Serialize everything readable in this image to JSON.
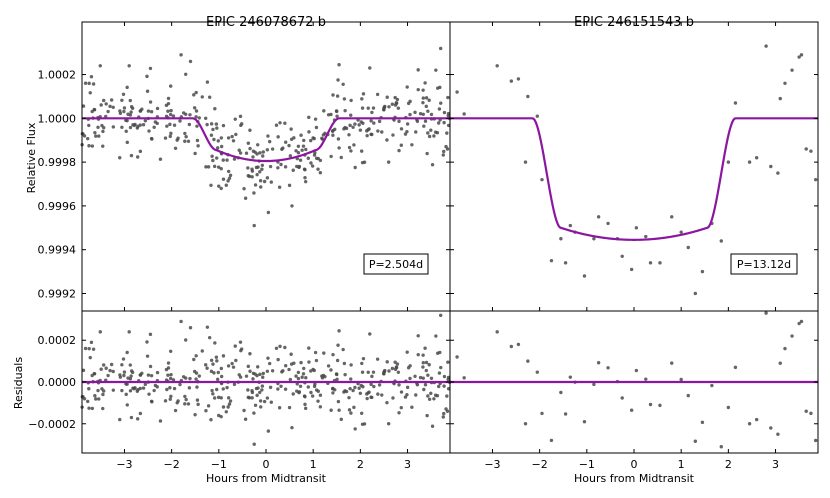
{
  "chart_data": {
    "type": "scatter",
    "xlabel": "Hours from Midtransit",
    "shared_xlim": [
      -3.9,
      3.9
    ],
    "xticks": [
      -3,
      -2,
      -1,
      0,
      1,
      2,
      3
    ],
    "xtick_labels": [
      "−3",
      "−2",
      "−1",
      "0",
      "1",
      "2",
      "3"
    ],
    "flux_ylabel": "Relative Flux",
    "flux_ylim": [
      0.99912,
      1.00044
    ],
    "flux_yticks": [
      0.9992,
      0.9994,
      0.9996,
      0.9998,
      1.0,
      1.0002
    ],
    "flux_ytick_labels": [
      "0.9992",
      "0.9994",
      "0.9996",
      "0.9998",
      "1.0000",
      "1.0002"
    ],
    "resid_ylabel": "Residuals",
    "resid_ylim": [
      -0.00034,
      0.00034
    ],
    "resid_yticks": [
      -0.0002,
      0.0,
      0.0002
    ],
    "resid_ytick_labels": [
      "−0.0002",
      "0.0000",
      "0.0002"
    ],
    "model_color": "#8b17a0",
    "point_color": "#4a4a4a",
    "panels": [
      {
        "title": "EPIC 246078672 b",
        "period_label": "P=2.504d",
        "model": {
          "baseline": 1.0,
          "t_contact1": 1.55,
          "t_contact2": 1.05,
          "depth_edge": 0.000145,
          "depth_center": 0.000195
        },
        "points": {
          "count": 420,
          "seed": 7,
          "scatter": 8.5e-05
        },
        "outliers": [
          {
            "x": -1.8,
            "y": 1.00029
          },
          {
            "x": -2.9,
            "y": 1.00024
          },
          {
            "x": -3.7,
            "y": 1.00019
          },
          {
            "x": -1.6,
            "y": 1.00026
          },
          {
            "x": -0.95,
            "y": 0.99968
          },
          {
            "x": -0.25,
            "y": 0.99951
          },
          {
            "x": 0.05,
            "y": 0.99957
          },
          {
            "x": 0.55,
            "y": 0.9996
          },
          {
            "x": 3.6,
            "y": 1.00022
          },
          {
            "x": 2.2,
            "y": 1.00023
          },
          {
            "x": 2.6,
            "y": 0.9998
          },
          {
            "x": -3.1,
            "y": 0.99982
          }
        ]
      },
      {
        "title": "EPIC 246151543 b",
        "period_label": "P=13.12d",
        "model": {
          "baseline": 1.0,
          "t_contact1": 2.15,
          "t_contact2": 1.55,
          "depth_edge": 0.0005,
          "depth_center": 0.000555
        },
        "points": {
          "count": 0,
          "seed": 3,
          "scatter": 0.0
        },
        "manual_points": [
          {
            "x": -3.75,
            "y": 1.00012
          },
          {
            "x": -3.6,
            "y": 1.00002
          },
          {
            "x": -2.9,
            "y": 1.00024
          },
          {
            "x": -2.6,
            "y": 1.00017
          },
          {
            "x": -2.45,
            "y": 1.00018
          },
          {
            "x": -2.3,
            "y": 0.9998
          },
          {
            "x": -2.25,
            "y": 1.0001
          },
          {
            "x": -2.05,
            "y": 1.00001
          },
          {
            "x": -1.95,
            "y": 0.99972
          },
          {
            "x": -1.75,
            "y": 0.99935
          },
          {
            "x": -1.55,
            "y": 0.99945
          },
          {
            "x": -1.45,
            "y": 0.99934
          },
          {
            "x": -1.35,
            "y": 0.99951
          },
          {
            "x": -1.25,
            "y": 0.99948
          },
          {
            "x": -1.05,
            "y": 0.99928
          },
          {
            "x": -0.85,
            "y": 0.99945
          },
          {
            "x": -0.75,
            "y": 0.99955
          },
          {
            "x": -0.55,
            "y": 0.99952
          },
          {
            "x": -0.35,
            "y": 0.99945
          },
          {
            "x": -0.25,
            "y": 0.99937
          },
          {
            "x": -0.05,
            "y": 0.99931
          },
          {
            "x": 0.05,
            "y": 0.9995
          },
          {
            "x": 0.25,
            "y": 0.99946
          },
          {
            "x": 0.35,
            "y": 0.99934
          },
          {
            "x": 0.55,
            "y": 0.99934
          },
          {
            "x": 0.8,
            "y": 0.99955
          },
          {
            "x": 1.0,
            "y": 0.99948
          },
          {
            "x": 1.15,
            "y": 0.99941
          },
          {
            "x": 1.3,
            "y": 0.9992
          },
          {
            "x": 1.45,
            "y": 0.9993
          },
          {
            "x": 1.65,
            "y": 0.99952
          },
          {
            "x": 1.85,
            "y": 0.99944
          },
          {
            "x": 2.0,
            "y": 0.9998
          },
          {
            "x": 2.15,
            "y": 1.00007
          },
          {
            "x": 2.45,
            "y": 0.9998
          },
          {
            "x": 2.6,
            "y": 0.99982
          },
          {
            "x": 2.8,
            "y": 1.00033
          },
          {
            "x": 2.9,
            "y": 0.99978
          },
          {
            "x": 3.05,
            "y": 0.99975
          },
          {
            "x": 3.1,
            "y": 1.00009
          },
          {
            "x": 3.2,
            "y": 1.00016
          },
          {
            "x": 3.35,
            "y": 1.00022
          },
          {
            "x": 3.5,
            "y": 1.00028
          },
          {
            "x": 3.55,
            "y": 1.00029
          },
          {
            "x": 3.65,
            "y": 0.99986
          },
          {
            "x": 3.75,
            "y": 0.99985
          },
          {
            "x": 3.85,
            "y": 0.99972
          }
        ]
      }
    ]
  }
}
